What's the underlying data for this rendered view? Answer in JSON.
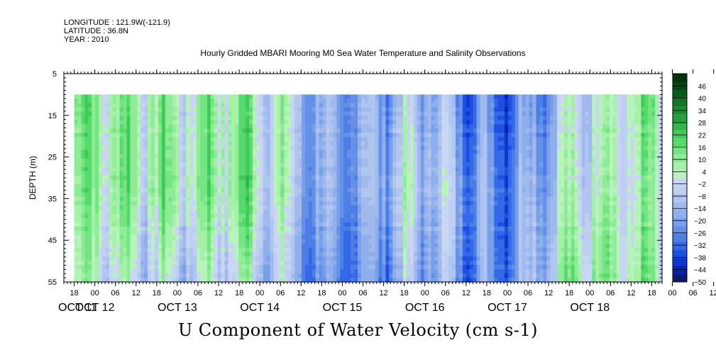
{
  "meta": {
    "longitude": "LONGITUDE : 121.9W(-121.9)",
    "latitude": "LATITUDE : 36.8N",
    "year": "YEAR : 2010"
  },
  "chart_data": {
    "type": "heatmap",
    "title": "Hourly Gridded MBARI Mooring M0 Sea Water Temperature and Salinity Observations",
    "bottom_title": "U Component of Water Velocity (cm s-1)",
    "ylabel": "DEPTH (m)",
    "xlabel": "",
    "y_range": [
      5,
      55
    ],
    "y_inverted": true,
    "y_ticks": [
      5,
      15,
      25,
      35,
      45,
      55
    ],
    "data_depth_range": [
      10,
      55
    ],
    "x_start_hour": "OCT 11 15:00",
    "x_end_hour": "OCT 18 21:00",
    "hour_ticks": [
      "18",
      "00",
      "06",
      "12",
      "18",
      "00",
      "06",
      "12",
      "18",
      "00",
      "06",
      "12",
      "18",
      "00",
      "06",
      "12",
      "18",
      "00",
      "06",
      "12",
      "18",
      "00",
      "06",
      "12",
      "18",
      "00",
      "06",
      "12",
      "18",
      "00",
      "06",
      "12"
    ],
    "day_labels": [
      "OCT 11",
      "OCT 12",
      "OCT 13",
      "OCT 14",
      "OCT 15",
      "OCT 16",
      "OCT 17",
      "OCT 18"
    ],
    "colorbar": {
      "ticks": [
        46,
        40,
        34,
        28,
        22,
        16,
        10,
        4,
        -2,
        -8,
        -14,
        -20,
        -26,
        -32,
        -38,
        -44,
        -50
      ],
      "range": [
        -50,
        52
      ],
      "palette": [
        "#0e1a6e",
        "#0a22a8",
        "#0d35cf",
        "#1f4fe0",
        "#3468e6",
        "#4c7ee6",
        "#6490e8",
        "#7a9fea",
        "#8eaeec",
        "#a1baee",
        "#b0c5f0",
        "#bfcff2",
        "#c8d5f3",
        "#b8f2bc",
        "#a6f0aa",
        "#8eec96",
        "#74e582",
        "#58d96c",
        "#41c95a",
        "#32b54b",
        "#26a03f",
        "#1b8a33",
        "#117327",
        "#0a5c1d",
        "#064715",
        "#03340e"
      ]
    },
    "u_velocity_columns": [
      {
        "day": "OCT 11",
        "shallow": 6,
        "mid": 4,
        "deep": -2
      },
      {
        "day": "OCT 12",
        "shallow": 14,
        "mid": 16,
        "deep": 2
      },
      {
        "day": "OCT 13",
        "shallow": 6,
        "mid": 8,
        "deep": -4
      },
      {
        "day": "OCT 14",
        "shallow": -14,
        "mid": -16,
        "deep": -22
      },
      {
        "day": "OCT 15",
        "shallow": -16,
        "mid": -10,
        "deep": -20
      },
      {
        "day": "OCT 16",
        "shallow": -24,
        "mid": -18,
        "deep": -20
      },
      {
        "day": "OCT 17",
        "shallow": -8,
        "mid": -4,
        "deep": 6
      },
      {
        "day": "OCT 18",
        "shallow": 14,
        "mid": 8,
        "deep": 10
      }
    ]
  }
}
